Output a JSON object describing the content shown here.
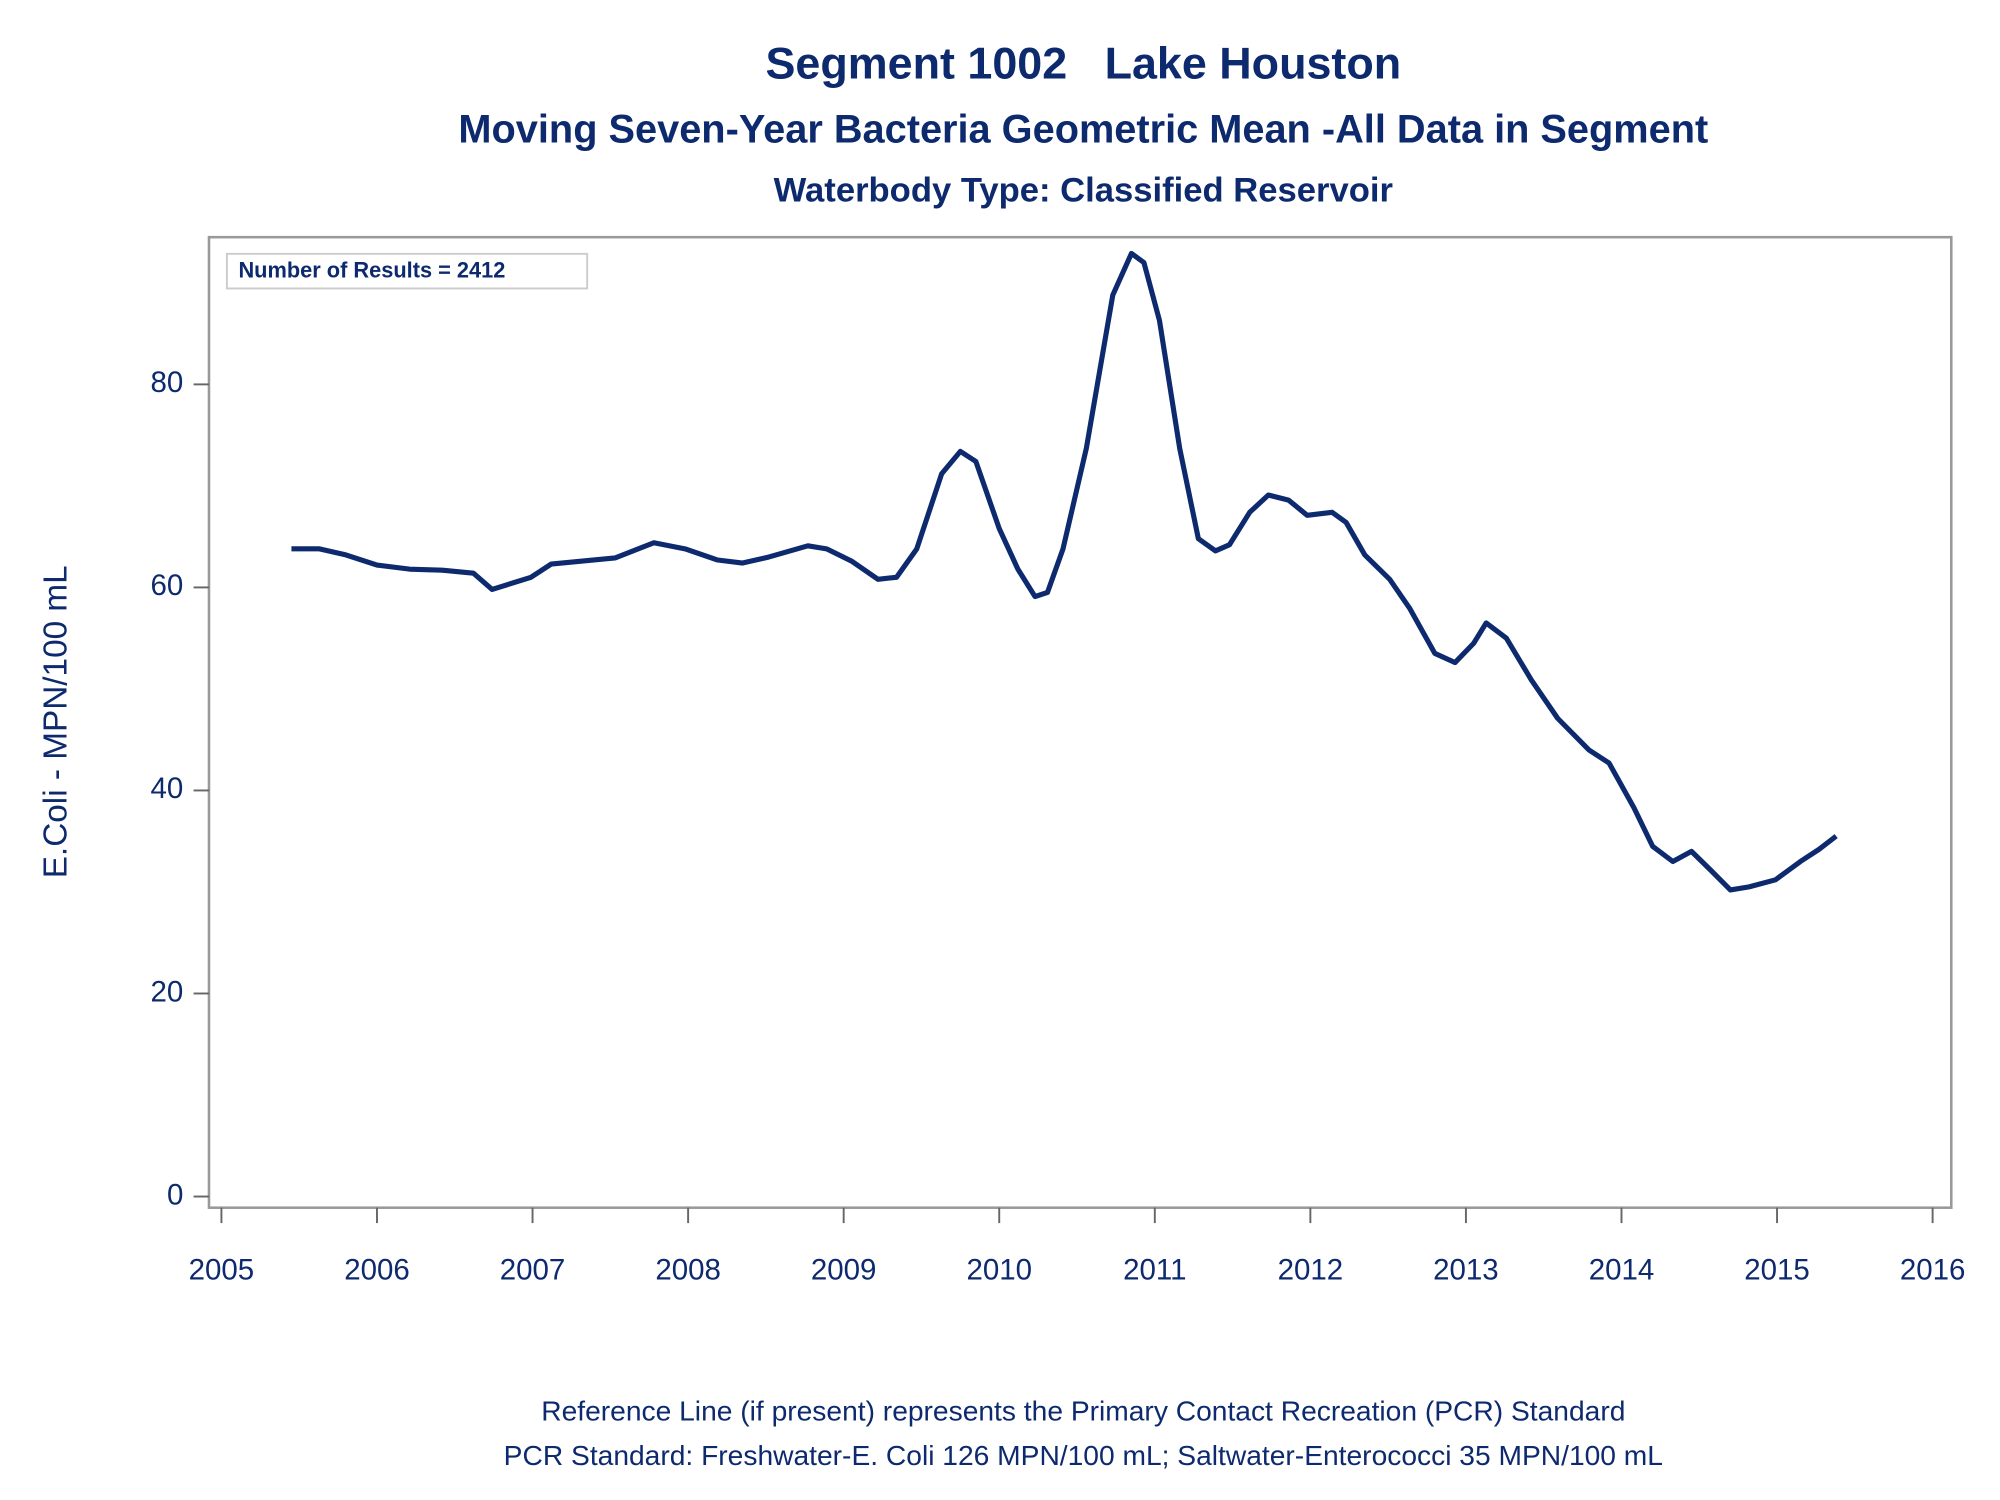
{
  "chart_data": {
    "type": "line",
    "title": "Segment 1002   Lake Houston",
    "subtitle": "Moving Seven-Year Bacteria Geometric Mean -All Data in Segment",
    "subtitle2": "Waterbody Type: Classified Reservoir",
    "y_label": "E.Coli - MPN/100 mL",
    "annotation": "Number of Results = 2412",
    "footnotes": [
      "Reference Line (if present) represents the Primary Contact Recreation (PCR) Standard",
      "PCR Standard: Freshwater-E. Coli 126 MPN/100 mL; Saltwater-Enterococci 35 MPN/100 mL"
    ],
    "x": [
      2005.45,
      2005.63,
      2005.8,
      2006.0,
      2006.21,
      2006.42,
      2006.62,
      2006.74,
      2006.99,
      2007.12,
      2007.32,
      2007.53,
      2007.78,
      2007.98,
      2008.19,
      2008.35,
      2008.52,
      2008.77,
      2008.89,
      2009.05,
      2009.22,
      2009.34,
      2009.47,
      2009.63,
      2009.75,
      2009.85,
      2010.0,
      2010.12,
      2010.23,
      2010.31,
      2010.41,
      2010.56,
      2010.73,
      2010.85,
      2010.93,
      2011.03,
      2011.16,
      2011.28,
      2011.39,
      2011.48,
      2011.61,
      2011.73,
      2011.86,
      2011.98,
      2012.14,
      2012.23,
      2012.35,
      2012.51,
      2012.64,
      2012.8,
      2012.93,
      2013.05,
      2013.13,
      2013.26,
      2013.42,
      2013.59,
      2013.79,
      2013.92,
      2014.08,
      2014.2,
      2014.33,
      2014.45,
      2014.57,
      2014.7,
      2014.82,
      2014.99,
      2015.15,
      2015.27,
      2015.38
    ],
    "series": [
      {
        "name": "Geometric Mean",
        "color": "#0e2a6e",
        "values": [
          63.8,
          63.8,
          63.2,
          62.2,
          61.8,
          61.7,
          61.4,
          59.8,
          61.0,
          62.3,
          62.6,
          62.9,
          64.4,
          63.8,
          62.7,
          62.4,
          63.0,
          64.1,
          63.8,
          62.6,
          60.8,
          61.0,
          63.8,
          71.2,
          73.4,
          72.4,
          65.8,
          61.8,
          59.1,
          59.5,
          63.8,
          73.7,
          88.8,
          92.9,
          92.0,
          86.3,
          73.7,
          64.8,
          63.6,
          64.2,
          67.4,
          69.1,
          68.6,
          67.1,
          67.4,
          66.4,
          63.2,
          60.8,
          57.9,
          53.5,
          52.6,
          54.5,
          56.5,
          55.0,
          50.9,
          47.1,
          44.0,
          42.7,
          38.3,
          34.5,
          33.0,
          34.0,
          32.2,
          30.2,
          30.5,
          31.2,
          33.0,
          34.2,
          35.5
        ]
      }
    ],
    "xlim": [
      2004.92,
      2016.12
    ],
    "xticks": [
      2005,
      2006,
      2007,
      2008,
      2009,
      2010,
      2011,
      2012,
      2013,
      2014,
      2015,
      2016
    ],
    "ylim": [
      -1.1,
      94.5
    ],
    "yticks": [
      0,
      20,
      40,
      60,
      80
    ],
    "grid": false
  }
}
